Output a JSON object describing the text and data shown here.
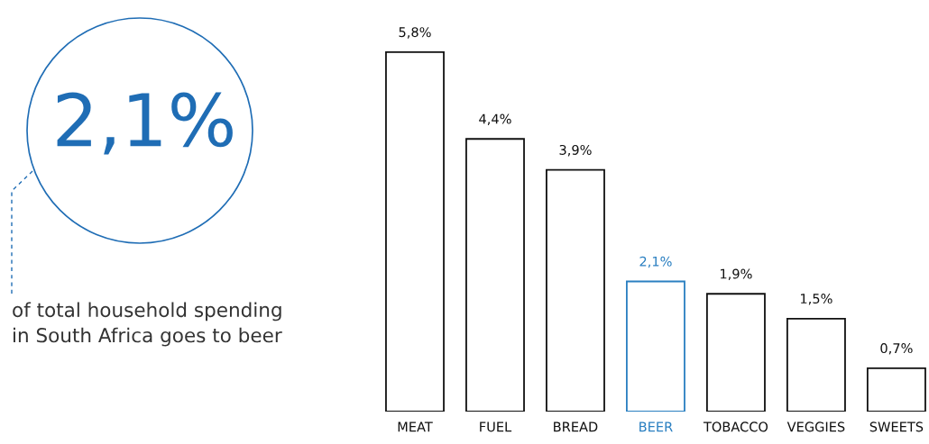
{
  "chart_data": {
    "type": "bar",
    "categories": [
      "MEAT",
      "FUEL",
      "BREAD",
      "BEER",
      "TOBACCO",
      "VEGGIES",
      "SWEETS"
    ],
    "values": [
      5.8,
      4.4,
      3.9,
      2.1,
      1.9,
      1.5,
      0.7
    ],
    "value_labels": [
      "5,8%",
      "4,4%",
      "3,9%",
      "2,1%",
      "1,9%",
      "1,5%",
      "0,7%"
    ],
    "colors": [
      "#111111",
      "#111111",
      "#111111",
      "#2a7fc1",
      "#111111",
      "#111111",
      "#111111"
    ],
    "annotations": [
      "2,1%",
      "of total household spending\nin South Africa goes to beer"
    ],
    "grid": false,
    "legend": false
  }
}
